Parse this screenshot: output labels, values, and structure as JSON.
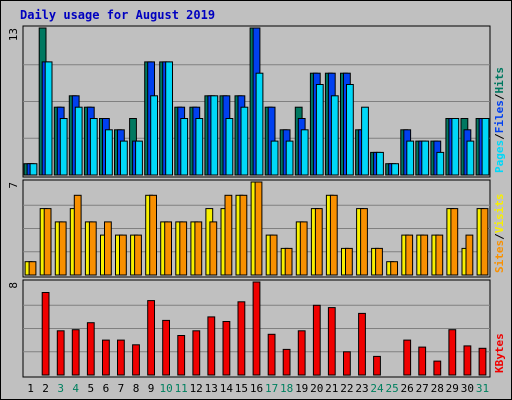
{
  "chart_data": {
    "type": "bar",
    "title": "Daily usage for August 2019",
    "categories": [
      "1",
      "2",
      "3",
      "4",
      "5",
      "6",
      "7",
      "8",
      "9",
      "10",
      "11",
      "12",
      "13",
      "14",
      "15",
      "16",
      "17",
      "18",
      "19",
      "20",
      "21",
      "22",
      "23",
      "24",
      "25",
      "26",
      "27",
      "28",
      "29",
      "30",
      "31"
    ],
    "weekend_days": [
      "3",
      "4",
      "10",
      "11",
      "17",
      "18",
      "24",
      "25",
      "31"
    ],
    "colors": {
      "background": "#c0c0c0",
      "plot_bg": "#c0c0c0",
      "grid": "#808080",
      "title": "#0000c0",
      "weekday_label": "#000000",
      "weekend_label": "#00805f",
      "slash": "#000000"
    },
    "panels": [
      {
        "id": "hits",
        "ymax_label": "13",
        "ylim": [
          0,
          13
        ],
        "legend": [
          {
            "name": "Pages",
            "color": "#00d8f8"
          },
          {
            "name": "Files",
            "color": "#0040f0"
          },
          {
            "name": "Hits",
            "color": "#007860"
          }
        ],
        "series": [
          {
            "name": "Hits",
            "color": "#007860",
            "values": [
              1,
              13,
              6,
              7,
              6,
              5,
              4,
              5,
              10,
              10,
              6,
              6,
              7,
              7,
              7,
              13,
              6,
              4,
              6,
              9,
              9,
              9,
              4,
              2,
              1,
              4,
              3,
              3,
              5,
              5,
              5
            ]
          },
          {
            "name": "Files",
            "color": "#0040f0",
            "values": [
              1,
              10,
              6,
              7,
              6,
              5,
              4,
              3,
              10,
              10,
              6,
              6,
              7,
              7,
              7,
              13,
              6,
              4,
              5,
              9,
              9,
              9,
              4,
              2,
              1,
              4,
              3,
              3,
              5,
              4,
              5
            ]
          },
          {
            "name": "Pages",
            "color": "#00d8f8",
            "values": [
              1,
              10,
              5,
              6,
              5,
              4,
              3,
              3,
              7,
              10,
              5,
              5,
              7,
              5,
              6,
              9,
              3,
              3,
              4,
              8,
              7,
              8,
              6,
              2,
              1,
              3,
              3,
              2,
              5,
              3,
              5
            ]
          }
        ]
      },
      {
        "id": "visits",
        "ymax_label": "7",
        "ylim": [
          0,
          7
        ],
        "legend": [
          {
            "name": "Sites",
            "color": "#f89000"
          },
          {
            "name": "Visits",
            "color": "#f8f000"
          }
        ],
        "series": [
          {
            "name": "Visits",
            "color": "#f8f000",
            "values": [
              1,
              5,
              4,
              5,
              4,
              3,
              3,
              3,
              6,
              4,
              4,
              4,
              5,
              5,
              6,
              7,
              3,
              2,
              4,
              5,
              6,
              2,
              5,
              2,
              1,
              3,
              3,
              3,
              5,
              2,
              5
            ]
          },
          {
            "name": "Sites",
            "color": "#f89000",
            "values": [
              1,
              5,
              4,
              6,
              4,
              4,
              3,
              3,
              6,
              4,
              4,
              4,
              4,
              6,
              6,
              7,
              3,
              2,
              4,
              5,
              6,
              2,
              5,
              2,
              1,
              3,
              3,
              3,
              5,
              3,
              5
            ]
          }
        ]
      },
      {
        "id": "kbytes",
        "ymax_label": "8",
        "ylim": [
          0,
          8
        ],
        "legend": [
          {
            "name": "KBytes",
            "color": "#f00000"
          }
        ],
        "series": [
          {
            "name": "KBytes",
            "color": "#f00000",
            "values": [
              0,
              7.1,
              3.8,
              3.9,
              4.5,
              3.0,
              3.0,
              2.6,
              6.4,
              4.7,
              3.4,
              3.8,
              5.0,
              4.6,
              6.3,
              8.0,
              3.5,
              2.2,
              3.8,
              6.0,
              5.8,
              2.0,
              5.3,
              1.6,
              0,
              3.0,
              2.4,
              1.2,
              3.9,
              2.5,
              2.3
            ]
          }
        ]
      }
    ]
  }
}
